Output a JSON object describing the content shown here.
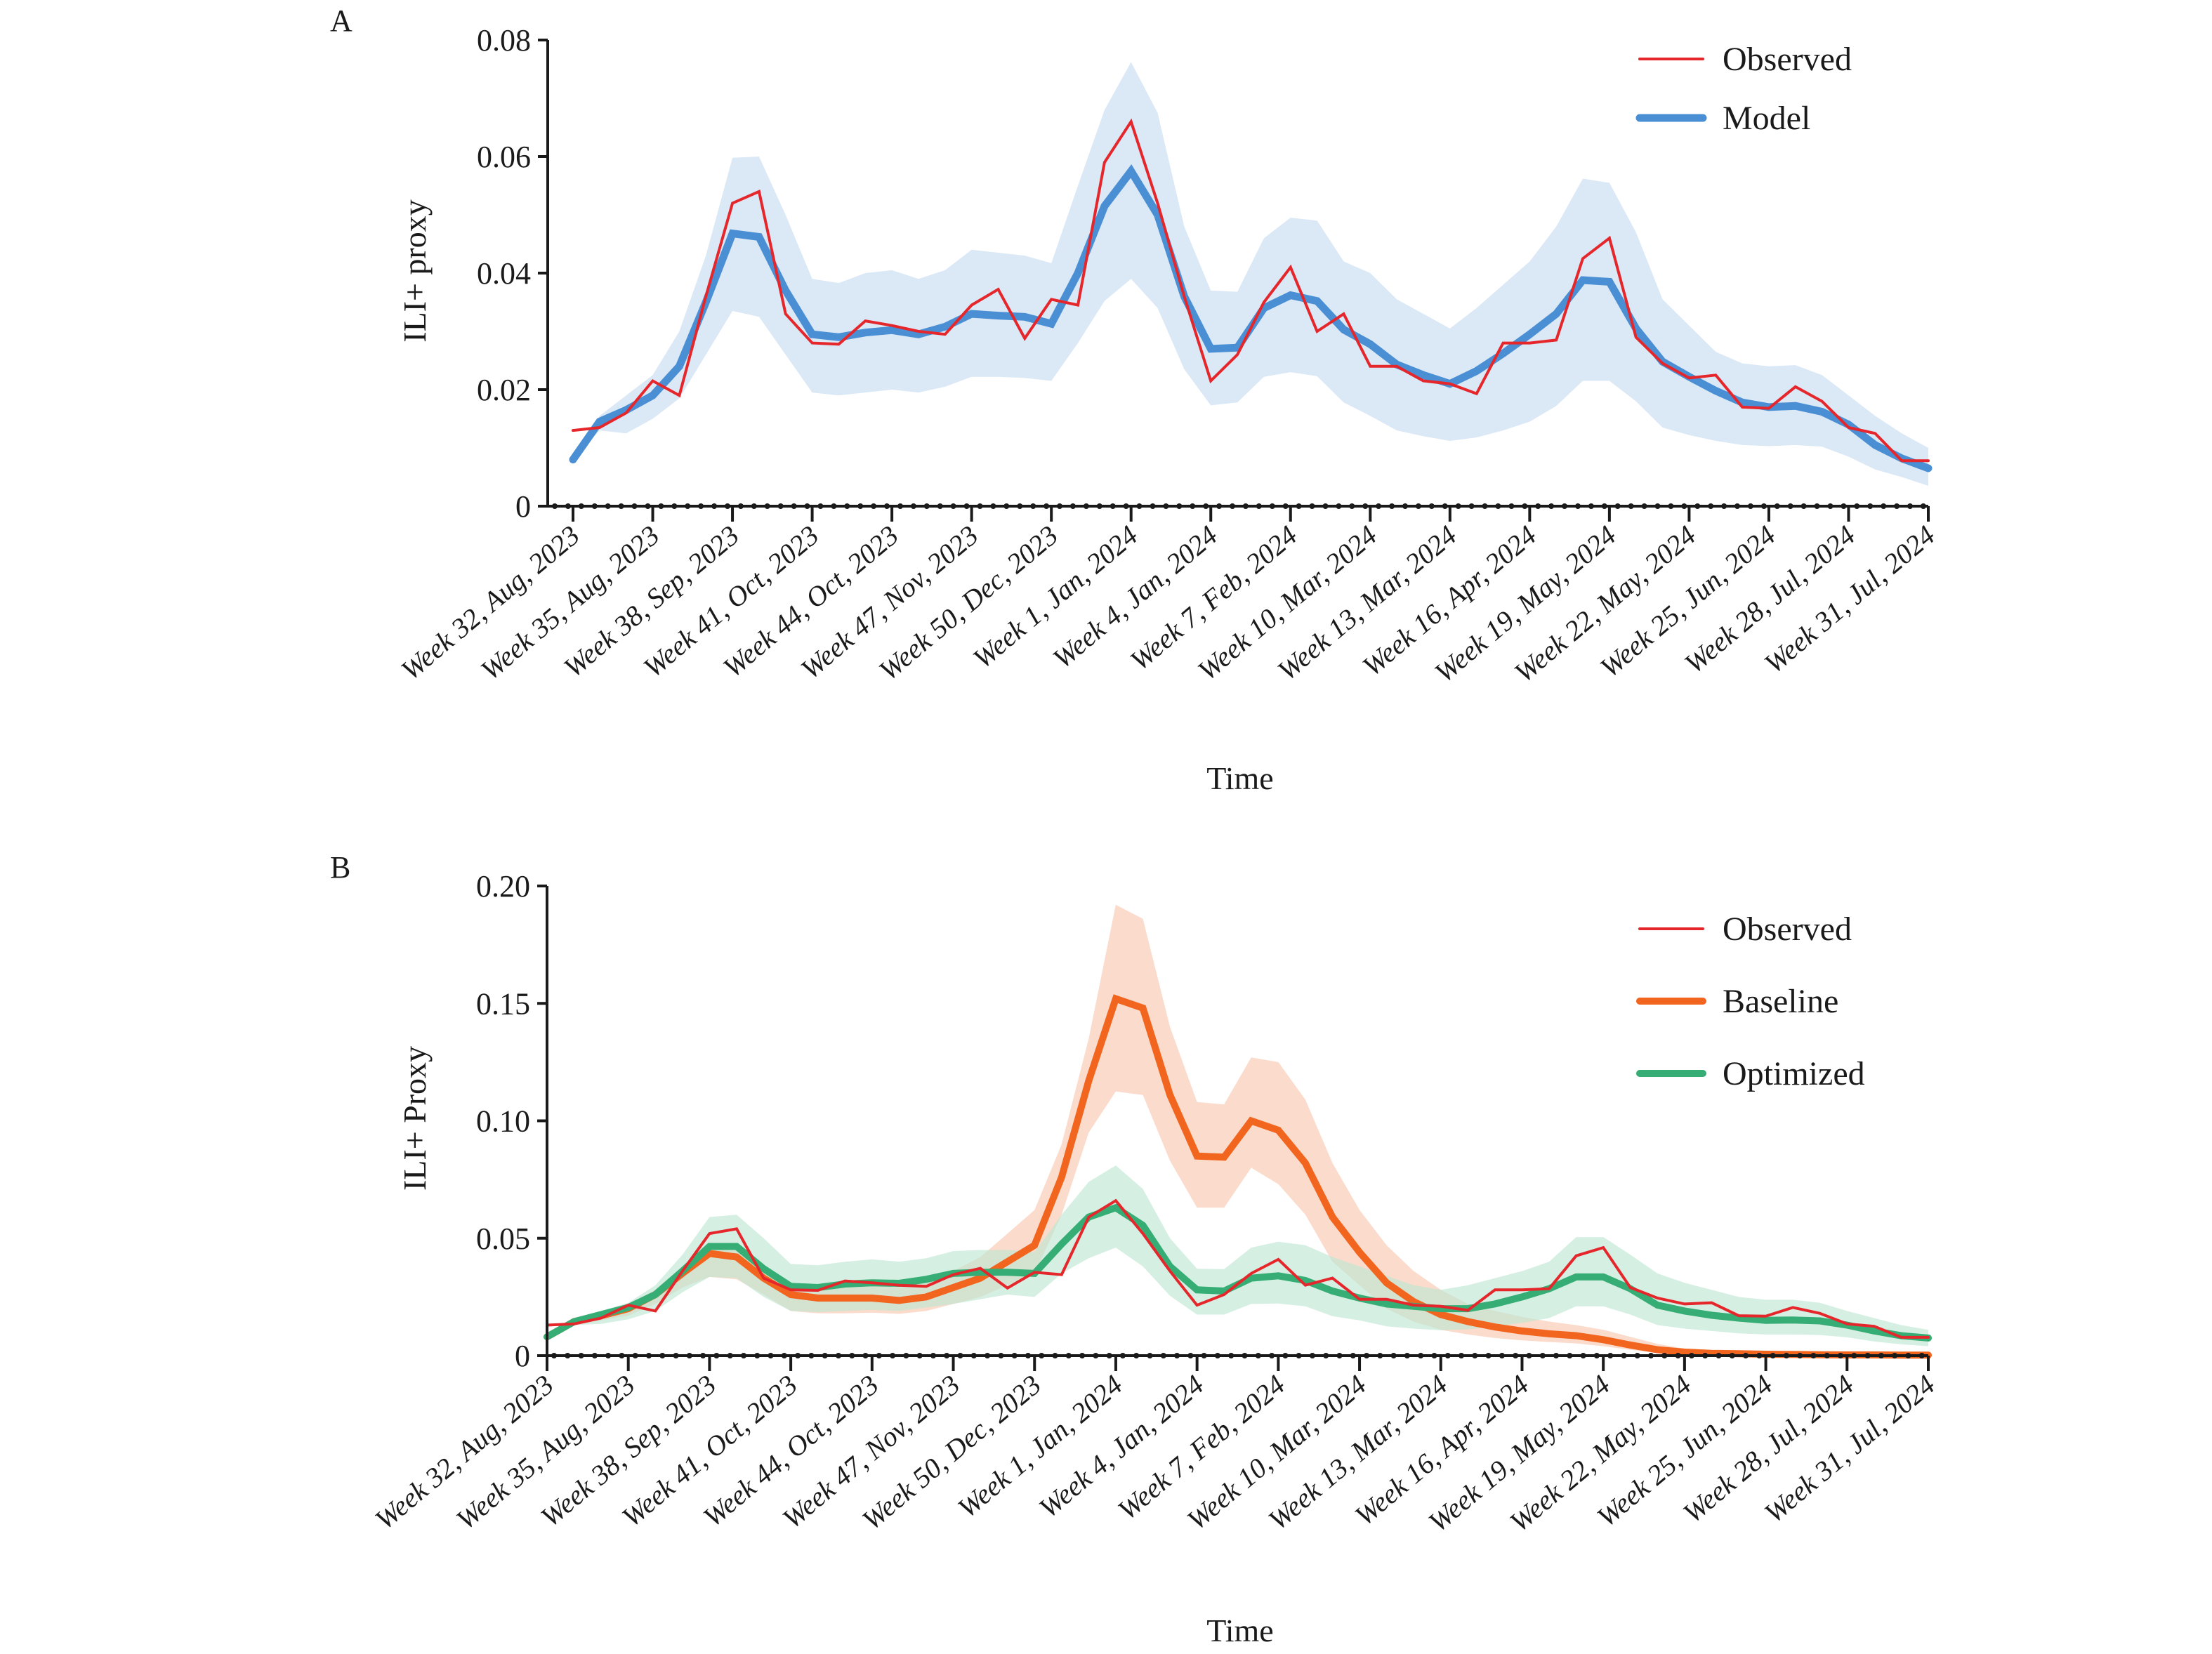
{
  "colors": {
    "observed": "#e5262b",
    "model": "#4a8fd4",
    "model_band": "#dbe8f6",
    "baseline": "#f2651f",
    "baseline_band": "#f9c8b1",
    "optimized": "#36ad74",
    "optimized_band": "#bfe6d3"
  },
  "chart_data": [
    {
      "panel": "A",
      "type": "line",
      "title": "",
      "xlabel": "Time",
      "ylabel": "ILI+ proxy",
      "ylim": [
        0,
        0.08
      ],
      "yticks": [
        "0",
        "0.02",
        "0.04",
        "0.06",
        "0.08"
      ],
      "ytick_values": [
        0,
        0.02,
        0.04,
        0.06,
        0.08
      ],
      "xtick_labels": [
        "Week 32, Aug, 2023",
        "Week 35, Aug, 2023",
        "Week 38, Sep, 2023",
        "Week 41, Oct, 2023",
        "Week 44, Oct, 2023",
        "Week 47, Nov, 2023",
        "Week 50, Dec, 2023",
        "Week 1, Jan, 2024",
        "Week 4, Jan, 2024",
        "Week 7, Feb, 2024",
        "Week 10, Mar, 2024",
        "Week 13, Mar, 2024",
        "Week 16, Apr, 2024",
        "Week 19, May, 2024",
        "Week 22, May, 2024",
        "Week 25, Jun, 2024",
        "Week 28, Jul, 2024",
        "Week 31, Jul, 2024"
      ],
      "xtick_every": 3,
      "n_points": 52,
      "legend_position": "top-right",
      "grid": false,
      "series": [
        {
          "name": "Observed",
          "color_key": "observed",
          "values": [
            0.013,
            0.0135,
            0.016,
            0.0215,
            0.019,
            0.036,
            0.052,
            0.054,
            0.033,
            0.028,
            0.0278,
            0.0318,
            0.031,
            0.03,
            0.0295,
            0.0345,
            0.0372,
            0.0288,
            0.0355,
            0.0345,
            0.059,
            0.066,
            0.052,
            0.036,
            0.0215,
            0.026,
            0.035,
            0.041,
            0.03,
            0.033,
            0.024,
            0.024,
            0.0215,
            0.021,
            0.0193,
            0.028,
            0.028,
            0.0285,
            0.0425,
            0.046,
            0.029,
            0.0245,
            0.022,
            0.0225,
            0.017,
            0.0168,
            0.0205,
            0.018,
            0.0135,
            0.0125,
            0.0078,
            0.0078
          ]
        },
        {
          "name": "Model",
          "color_key": "model",
          "band_key": "model_band",
          "values": [
            0.008,
            0.0145,
            0.0165,
            0.019,
            0.024,
            0.035,
            0.0468,
            0.0462,
            0.037,
            0.0295,
            0.029,
            0.0298,
            0.0302,
            0.0295,
            0.0308,
            0.033,
            0.0327,
            0.0325,
            0.0313,
            0.04,
            0.0515,
            0.0575,
            0.05,
            0.036,
            0.027,
            0.0272,
            0.034,
            0.0362,
            0.0352,
            0.0303,
            0.0278,
            0.0243,
            0.0225,
            0.021,
            0.0232,
            0.0262,
            0.0295,
            0.033,
            0.0388,
            0.0385,
            0.0305,
            0.0248,
            0.0222,
            0.0198,
            0.0178,
            0.017,
            0.0172,
            0.0162,
            0.014,
            0.0105,
            0.0082,
            0.0065
          ],
          "upper": [
            0.008,
            0.0155,
            0.019,
            0.0225,
            0.03,
            0.043,
            0.0598,
            0.06,
            0.05,
            0.039,
            0.0383,
            0.04,
            0.0405,
            0.039,
            0.0405,
            0.044,
            0.0435,
            0.043,
            0.0417,
            0.055,
            0.068,
            0.0762,
            0.0675,
            0.048,
            0.037,
            0.0368,
            0.046,
            0.0495,
            0.049,
            0.042,
            0.04,
            0.0355,
            0.033,
            0.0305,
            0.034,
            0.038,
            0.042,
            0.048,
            0.0562,
            0.0555,
            0.047,
            0.0355,
            0.031,
            0.0265,
            0.0245,
            0.024,
            0.0242,
            0.0225,
            0.019,
            0.0155,
            0.0125,
            0.01
          ],
          "lower": [
            0.008,
            0.013,
            0.0125,
            0.015,
            0.0185,
            0.026,
            0.0335,
            0.0325,
            0.026,
            0.0195,
            0.019,
            0.0195,
            0.02,
            0.0195,
            0.0205,
            0.0222,
            0.0222,
            0.022,
            0.0215,
            0.028,
            0.0352,
            0.039,
            0.034,
            0.0235,
            0.0173,
            0.0178,
            0.0222,
            0.023,
            0.0223,
            0.0178,
            0.0155,
            0.013,
            0.012,
            0.0112,
            0.0118,
            0.013,
            0.0145,
            0.0172,
            0.0215,
            0.0215,
            0.018,
            0.0135,
            0.0122,
            0.0112,
            0.0105,
            0.0103,
            0.0105,
            0.0102,
            0.0085,
            0.0063,
            0.005,
            0.0035
          ]
        }
      ]
    },
    {
      "panel": "B",
      "type": "line",
      "title": "",
      "xlabel": "Time",
      "ylabel": "ILI+ Proxy",
      "ylim": [
        0,
        0.2
      ],
      "yticks": [
        "0",
        "0.05",
        "0.10",
        "0.15",
        "0.20"
      ],
      "ytick_values": [
        0,
        0.05,
        0.1,
        0.15,
        0.2
      ],
      "xtick_labels": [
        "Week 32, Aug, 2023",
        "Week 35, Aug, 2023",
        "Week 38, Sep, 2023",
        "Week 41, Oct, 2023",
        "Week 44, Oct, 2023",
        "Week 47, Nov, 2023",
        "Week 50, Dec, 2023",
        "Week 1, Jan, 2024",
        "Week 4, Jan, 2024",
        "Week 7, Feb, 2024",
        "Week 10, Mar, 2024",
        "Week 13, Mar, 2024",
        "Week 16, Apr, 2024",
        "Week 19, May, 2024",
        "Week 22, May, 2024",
        "Week 25, Jun, 2024",
        "Week 28, Jul, 2024",
        "Week 31, Jul, 2024"
      ],
      "xtick_every": 3,
      "n_points": 52,
      "legend_position": "top-right",
      "grid": false,
      "series": [
        {
          "name": "Observed",
          "color_key": "observed",
          "values": [
            0.013,
            0.0135,
            0.016,
            0.0215,
            0.019,
            0.036,
            0.052,
            0.054,
            0.033,
            0.028,
            0.0278,
            0.0318,
            0.031,
            0.03,
            0.0295,
            0.0345,
            0.0372,
            0.0288,
            0.0355,
            0.0345,
            0.059,
            0.066,
            0.052,
            0.036,
            0.0215,
            0.026,
            0.035,
            0.041,
            0.03,
            0.033,
            0.024,
            0.024,
            0.0215,
            0.021,
            0.0193,
            0.028,
            0.028,
            0.0285,
            0.0425,
            0.046,
            0.029,
            0.0245,
            0.022,
            0.0225,
            0.017,
            0.0168,
            0.0205,
            0.018,
            0.0135,
            0.0125,
            0.0078,
            0.0078
          ]
        },
        {
          "name": "Baseline",
          "color_key": "baseline",
          "band_key": "baseline_band",
          "values": [
            0.008,
            0.0145,
            0.017,
            0.02,
            0.026,
            0.035,
            0.0435,
            0.042,
            0.033,
            0.026,
            0.0245,
            0.0245,
            0.0245,
            0.0235,
            0.025,
            0.029,
            0.033,
            0.04,
            0.047,
            0.076,
            0.117,
            0.152,
            0.148,
            0.111,
            0.085,
            0.0845,
            0.1,
            0.096,
            0.082,
            0.059,
            0.044,
            0.031,
            0.023,
            0.0175,
            0.0145,
            0.0122,
            0.0105,
            0.0093,
            0.0085,
            0.0068,
            0.0045,
            0.0025,
            0.0015,
            0.001,
            0.0008,
            0.0006,
            0.0005,
            0.0004,
            0.0003,
            0.0003,
            0.0002,
            0.0002
          ],
          "upper": [
            0.008,
            0.016,
            0.019,
            0.022,
            0.028,
            0.038,
            0.048,
            0.047,
            0.038,
            0.031,
            0.03,
            0.03,
            0.03,
            0.029,
            0.031,
            0.036,
            0.042,
            0.052,
            0.062,
            0.09,
            0.135,
            0.192,
            0.186,
            0.14,
            0.108,
            0.107,
            0.127,
            0.125,
            0.109,
            0.082,
            0.062,
            0.047,
            0.036,
            0.028,
            0.022,
            0.019,
            0.0165,
            0.0145,
            0.013,
            0.011,
            0.008,
            0.005,
            0.003,
            0.002,
            0.0015,
            0.0012,
            0.001,
            0.0008,
            0.0007,
            0.0006,
            0.0005,
            0.0005
          ],
          "lower": [
            0.008,
            0.013,
            0.015,
            0.017,
            0.022,
            0.029,
            0.0335,
            0.0325,
            0.026,
            0.019,
            0.018,
            0.018,
            0.0183,
            0.0178,
            0.019,
            0.022,
            0.025,
            0.03,
            0.035,
            0.06,
            0.095,
            0.1125,
            0.111,
            0.083,
            0.063,
            0.063,
            0.08,
            0.073,
            0.06,
            0.04,
            0.03,
            0.02,
            0.0145,
            0.011,
            0.009,
            0.0075,
            0.0065,
            0.0058,
            0.0052,
            0.004,
            0.0025,
            0.0013,
            0.0008,
            0.0005,
            0.0004,
            0.0003,
            0.0002,
            0.0002,
            0.0001,
            0.0001,
            0.0001,
            0.0001
          ]
        },
        {
          "name": "Optimized",
          "color_key": "optimized",
          "band_key": "optimized_band",
          "values": [
            0.008,
            0.0145,
            0.0175,
            0.0205,
            0.026,
            0.036,
            0.0465,
            0.0465,
            0.037,
            0.0295,
            0.029,
            0.0305,
            0.031,
            0.0308,
            0.0325,
            0.035,
            0.0355,
            0.0355,
            0.035,
            0.0475,
            0.059,
            0.063,
            0.0555,
            0.038,
            0.028,
            0.0275,
            0.033,
            0.034,
            0.032,
            0.0275,
            0.0245,
            0.022,
            0.021,
            0.02,
            0.02,
            0.022,
            0.025,
            0.0285,
            0.0335,
            0.0335,
            0.0285,
            0.0215,
            0.019,
            0.0172,
            0.016,
            0.015,
            0.0152,
            0.0148,
            0.013,
            0.0105,
            0.0085,
            0.0075
          ],
          "upper": [
            0.008,
            0.016,
            0.019,
            0.0225,
            0.03,
            0.043,
            0.059,
            0.06,
            0.05,
            0.039,
            0.0385,
            0.04,
            0.041,
            0.04,
            0.0415,
            0.0445,
            0.045,
            0.045,
            0.044,
            0.06,
            0.074,
            0.081,
            0.071,
            0.05,
            0.037,
            0.0368,
            0.046,
            0.0485,
            0.047,
            0.042,
            0.038,
            0.034,
            0.03,
            0.028,
            0.03,
            0.033,
            0.036,
            0.04,
            0.0505,
            0.0505,
            0.043,
            0.035,
            0.031,
            0.028,
            0.025,
            0.0238,
            0.0238,
            0.0225,
            0.019,
            0.016,
            0.013,
            0.011
          ],
          "lower": [
            0.008,
            0.013,
            0.0135,
            0.0155,
            0.019,
            0.027,
            0.0335,
            0.033,
            0.025,
            0.019,
            0.0185,
            0.019,
            0.0195,
            0.019,
            0.0205,
            0.022,
            0.024,
            0.026,
            0.025,
            0.035,
            0.0415,
            0.046,
            0.038,
            0.0255,
            0.0175,
            0.0175,
            0.022,
            0.0222,
            0.021,
            0.0168,
            0.015,
            0.0125,
            0.0115,
            0.0108,
            0.0112,
            0.0125,
            0.014,
            0.016,
            0.021,
            0.021,
            0.0175,
            0.013,
            0.0115,
            0.0105,
            0.0095,
            0.009,
            0.009,
            0.0088,
            0.0078,
            0.006,
            0.0048,
            0.004
          ]
        }
      ]
    }
  ]
}
